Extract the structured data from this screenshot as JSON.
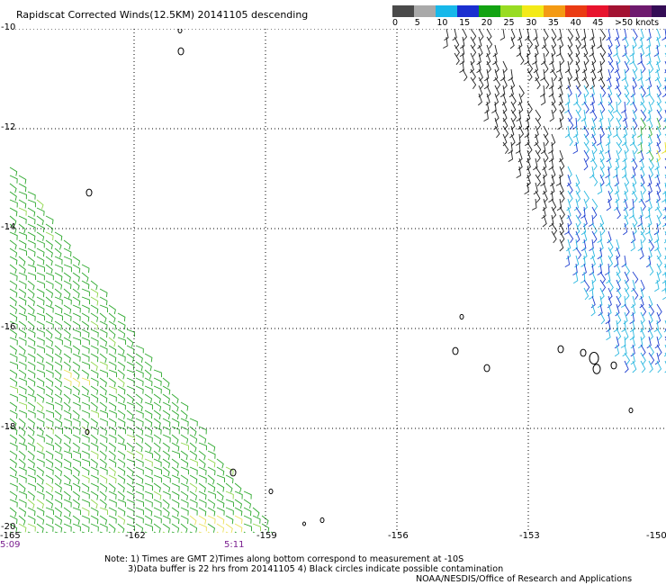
{
  "title": "Rapidscat Corrected Winds(12.5KM) 20141105 descending",
  "legend": {
    "colors": [
      "#4a4a4a",
      "#a9a9a9",
      "#17b8ea",
      "#1a2fd0",
      "#12a312",
      "#98dc22",
      "#f3ea18",
      "#f49a13",
      "#ea3b13",
      "#e8132d",
      "#a31232",
      "#6e1a6e",
      "#340c55"
    ],
    "labels": [
      "0",
      "5",
      "10",
      "15",
      "20",
      "25",
      "30",
      "35",
      "40",
      "45",
      ">50 knots"
    ]
  },
  "axes": {
    "lat_labels": [
      "-10",
      "-12",
      "-14",
      "-16",
      "-18",
      "-20"
    ],
    "lon_labels": [
      "-165",
      "-162",
      "-159",
      "-156",
      "-153",
      "-150"
    ]
  },
  "times": [
    "5:09",
    "5:11"
  ],
  "notes": [
    "Note: 1) Times are GMT 2)Times along bottom correspond to measurement at -10S",
    "3)Data buffer is 22 hrs from 20141105 4) Black circles indicate possible contamination"
  ],
  "credit": "NOAA/NESDIS/Office of Research and Applications",
  "icons": {
    "wind_barb": "wind-barb-icon",
    "contamination_circle": "contamination-circle-icon"
  }
}
